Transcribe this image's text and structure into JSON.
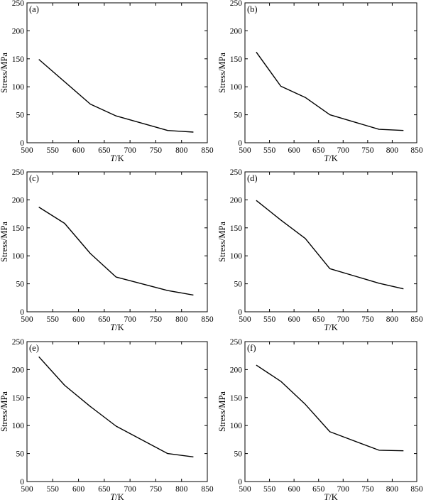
{
  "figure": {
    "x_label_italic": "T",
    "x_label_rest": "/K",
    "y_label": "Stress/MPa"
  },
  "chart_data": [
    {
      "type": "line",
      "panel_label": "(a)",
      "xlabel": "T/K",
      "ylabel": "Stress/MPa",
      "xlim": [
        500,
        850
      ],
      "ylim": [
        0,
        250
      ],
      "xticks": [
        500,
        550,
        600,
        650,
        700,
        750,
        800,
        850
      ],
      "yticks": [
        0,
        50,
        100,
        150,
        200,
        250
      ],
      "x": [
        523,
        623,
        673,
        773,
        823
      ],
      "y": [
        149,
        69,
        48,
        22,
        19
      ]
    },
    {
      "type": "line",
      "panel_label": "(b)",
      "xlabel": "T/K",
      "ylabel": "Stress/MPa",
      "xlim": [
        500,
        850
      ],
      "ylim": [
        0,
        250
      ],
      "xticks": [
        500,
        550,
        600,
        650,
        700,
        750,
        800,
        850
      ],
      "yticks": [
        0,
        50,
        100,
        150,
        200,
        250
      ],
      "x": [
        523,
        573,
        623,
        673,
        773,
        823
      ],
      "y": [
        162,
        101,
        81,
        50,
        24,
        22
      ]
    },
    {
      "type": "line",
      "panel_label": "(c)",
      "xlabel": "T/K",
      "ylabel": "Stress/MPa",
      "xlim": [
        500,
        850
      ],
      "ylim": [
        0,
        250
      ],
      "xticks": [
        500,
        550,
        600,
        650,
        700,
        750,
        800,
        850
      ],
      "yticks": [
        0,
        50,
        100,
        150,
        200,
        250
      ],
      "x": [
        523,
        573,
        623,
        673,
        773,
        823
      ],
      "y": [
        187,
        158,
        104,
        62,
        38,
        30
      ]
    },
    {
      "type": "line",
      "panel_label": "(d)",
      "xlabel": "T/K",
      "ylabel": "Stress/MPa",
      "xlim": [
        500,
        850
      ],
      "ylim": [
        0,
        250
      ],
      "xticks": [
        500,
        550,
        600,
        650,
        700,
        750,
        800,
        850
      ],
      "yticks": [
        0,
        50,
        100,
        150,
        200,
        250
      ],
      "x": [
        523,
        573,
        623,
        673,
        773,
        823
      ],
      "y": [
        199,
        164,
        131,
        77,
        51,
        41
      ]
    },
    {
      "type": "line",
      "panel_label": "(e)",
      "xlabel": "T/K",
      "ylabel": "Stress/MPa",
      "xlim": [
        500,
        850
      ],
      "ylim": [
        0,
        250
      ],
      "xticks": [
        500,
        550,
        600,
        650,
        700,
        750,
        800,
        850
      ],
      "yticks": [
        0,
        50,
        100,
        150,
        200,
        250
      ],
      "x": [
        523,
        573,
        623,
        673,
        773,
        823
      ],
      "y": [
        223,
        172,
        134,
        99,
        50,
        44
      ]
    },
    {
      "type": "line",
      "panel_label": "(f)",
      "xlabel": "T/K",
      "ylabel": "Stress/MPa",
      "xlim": [
        500,
        850
      ],
      "ylim": [
        0,
        250
      ],
      "xticks": [
        500,
        550,
        600,
        650,
        700,
        750,
        800,
        850
      ],
      "yticks": [
        0,
        50,
        100,
        150,
        200,
        250
      ],
      "x": [
        523,
        573,
        623,
        673,
        773,
        823
      ],
      "y": [
        208,
        179,
        138,
        89,
        56,
        55
      ]
    }
  ]
}
